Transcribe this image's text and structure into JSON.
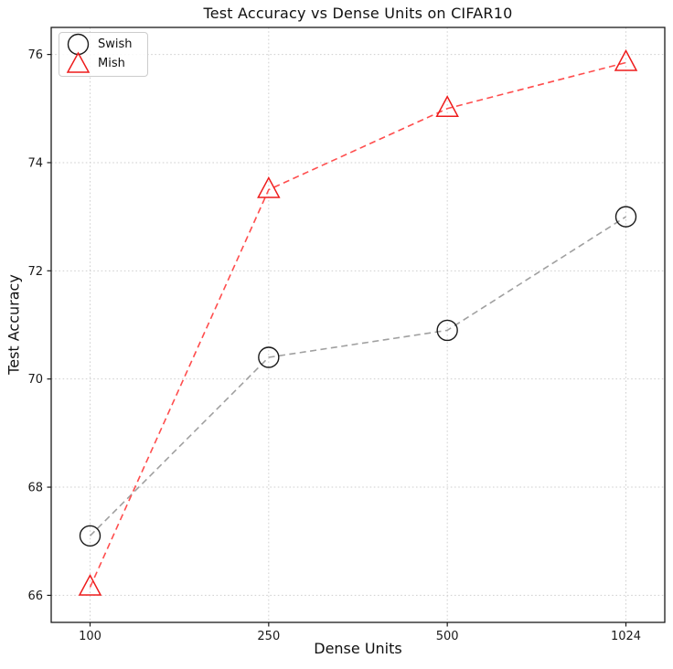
{
  "chart_data": {
    "type": "line",
    "title": "Test Accuracy vs Dense Units on CIFAR10",
    "xlabel": "Dense Units",
    "ylabel": "Test Accuracy",
    "categories": [
      "100",
      "250",
      "500",
      "1024"
    ],
    "yticks": [
      66,
      68,
      70,
      72,
      74,
      76
    ],
    "ylim": [
      65.5,
      76.5
    ],
    "grid": "dotted both axes",
    "grid_color": "#cfcfcf",
    "spine_color": "#1a1a1a",
    "legend_position": "upper-left",
    "series": [
      {
        "name": "Swish",
        "marker": "circle",
        "marker_color": "#1a1a1a",
        "line_color": "#a0a0a0",
        "line_style": "dashed",
        "values": [
          67.1,
          70.4,
          70.9,
          73.0
        ]
      },
      {
        "name": "Mish",
        "marker": "triangle",
        "marker_color": "#ee1c1c",
        "line_color": "#ff4d4d",
        "line_style": "dashed",
        "values": [
          66.15,
          73.5,
          75.0,
          75.85
        ]
      }
    ]
  }
}
